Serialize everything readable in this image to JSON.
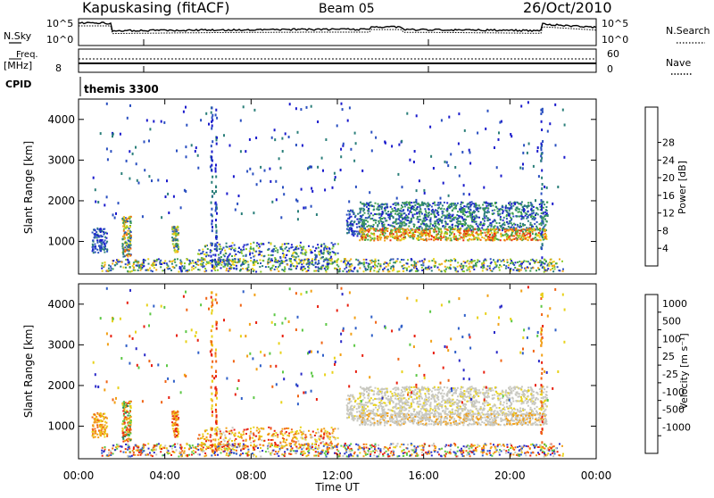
{
  "header": {
    "station": "Kapuskasing (fitACF)",
    "beam": "Beam 05",
    "date": "26/Oct/2010"
  },
  "noise_panel": {
    "left_label": "N.Sky",
    "left_ticks": [
      "10^5",
      "10^0"
    ],
    "right_ticks": [
      "10^5",
      "10^0"
    ],
    "right_label": "N.Search"
  },
  "freq_panel": {
    "left_label_1": "Freq.",
    "left_label_2": "[MHz]",
    "left_tick": "8",
    "right_ticks": [
      "60",
      "0"
    ],
    "right_label": "Nave"
  },
  "cpid_panel": {
    "label": "CPID",
    "value": "themis 3300"
  },
  "colors": {
    "power_scale": [
      "#1a1acc",
      "#2a4fc0",
      "#2b7f7a",
      "#3f9f4f",
      "#8ccb2a",
      "#e8d21a",
      "#f0a515",
      "#f06a10",
      "#e82c10"
    ],
    "velocity_scale": [
      "#2a2ac8",
      "#2f5fc8",
      "#2e8a5a",
      "#5cc845",
      "#c8c8c0",
      "#e8d21a",
      "#f2a015",
      "#f06414",
      "#e82010"
    ]
  },
  "chart_data": [
    {
      "type": "heatmap",
      "name": "power",
      "ylabel": "Slant Range [km]",
      "y_ticks": [
        1000,
        2000,
        3000,
        4000
      ],
      "ylim": [
        200,
        4500
      ],
      "xlim": [
        0,
        24
      ],
      "colorbar": {
        "label": "Power [dB]",
        "ticks": [
          "4",
          "8",
          "12",
          "16",
          "20",
          "24",
          "28"
        ],
        "range": [
          0,
          32
        ]
      }
    },
    {
      "type": "heatmap",
      "name": "velocity",
      "ylabel": "Slant Range [km]",
      "y_ticks": [
        1000,
        2000,
        3000,
        4000
      ],
      "ylim": [
        200,
        4500
      ],
      "xlim": [
        0,
        24
      ],
      "colorbar": {
        "label": "Velocity [m s⁻¹]",
        "ticks": [
          "1000",
          "500",
          "100",
          "25",
          "-25",
          "-100",
          "-500",
          "-1000"
        ]
      },
      "x_ticks": [
        "00:00",
        "04:00",
        "08:00",
        "12:00",
        "16:00",
        "20:00",
        "00:00"
      ],
      "xlabel": "Time UT"
    }
  ]
}
